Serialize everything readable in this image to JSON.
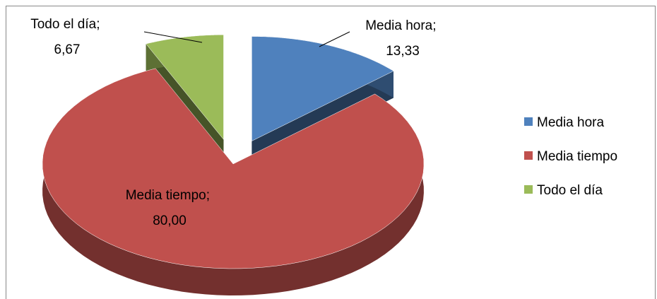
{
  "chart_data": {
    "type": "pie",
    "three_d": true,
    "exploded": [
      "Media hora",
      "Todo el día"
    ],
    "categories": [
      "Media hora",
      "Media tiempo",
      "Todo el día"
    ],
    "values": [
      13.33,
      80.0,
      6.67
    ],
    "value_labels": [
      "Media hora; 13,33",
      "Media tiempo; 80,00",
      "Todo el día; 6,67"
    ],
    "colors": [
      "#4f81bd",
      "#c0504d",
      "#9bbb59"
    ],
    "legend": "right"
  }
}
